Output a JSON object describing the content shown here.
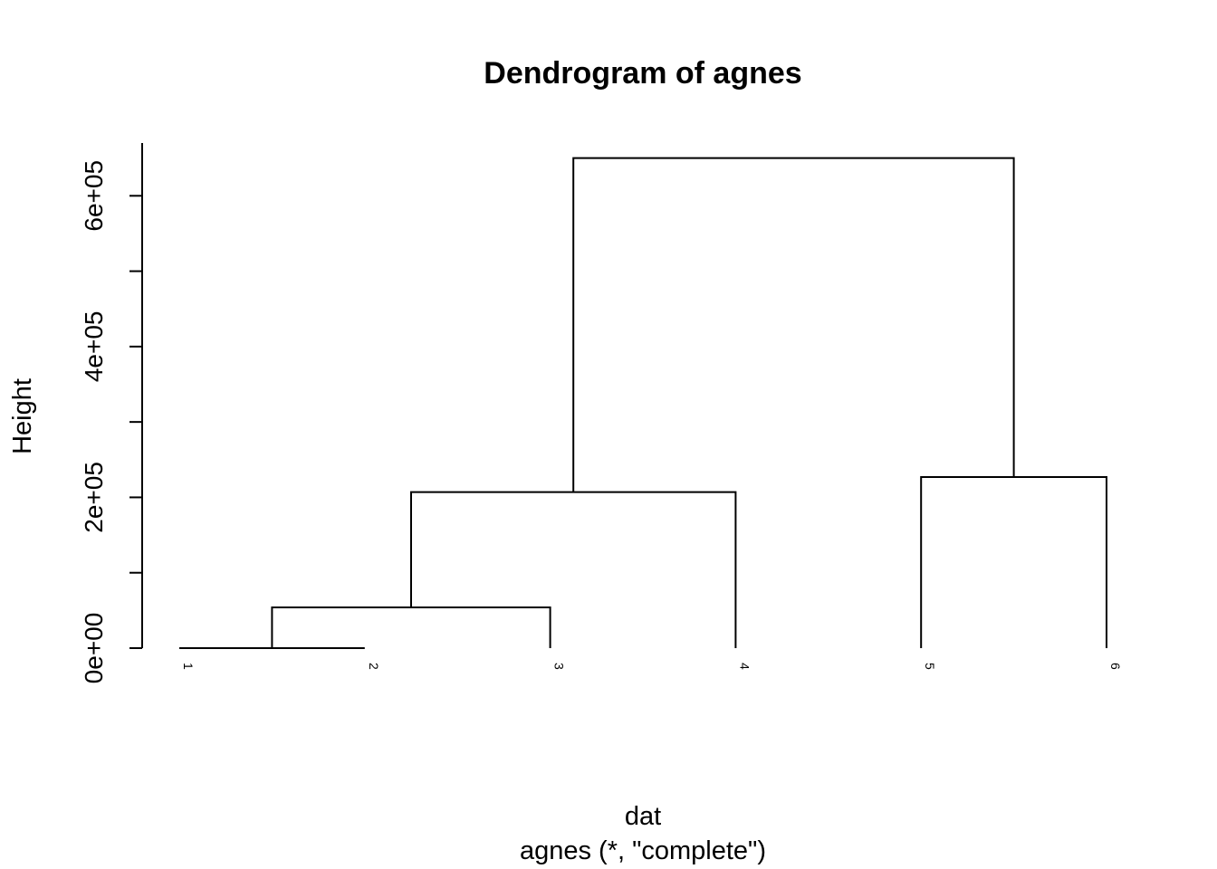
{
  "chart_data": {
    "type": "dendrogram",
    "title": "Dendrogram of agnes",
    "xlabel": "dat",
    "sublabel": "agnes (*, \"complete\")",
    "ylabel": "Height",
    "ylim": [
      0,
      670000
    ],
    "y_ticks": [
      0,
      100000,
      200000,
      300000,
      400000,
      500000,
      600000
    ],
    "y_tick_labels": [
      "0e+00",
      "",
      "2e+05",
      "",
      "4e+05",
      "",
      "6e+05"
    ],
    "leaves": [
      "1",
      "2",
      "3",
      "4",
      "5",
      "6"
    ],
    "merges": [
      {
        "left": 1,
        "right": 2,
        "height": 0
      },
      {
        "left": "m1",
        "right": 3,
        "height": 54000
      },
      {
        "left": "m2",
        "right": 4,
        "height": 207000
      },
      {
        "left": 5,
        "right": 6,
        "height": 227000
      },
      {
        "left": "m3",
        "right": "m4",
        "height": 650000
      }
    ]
  }
}
